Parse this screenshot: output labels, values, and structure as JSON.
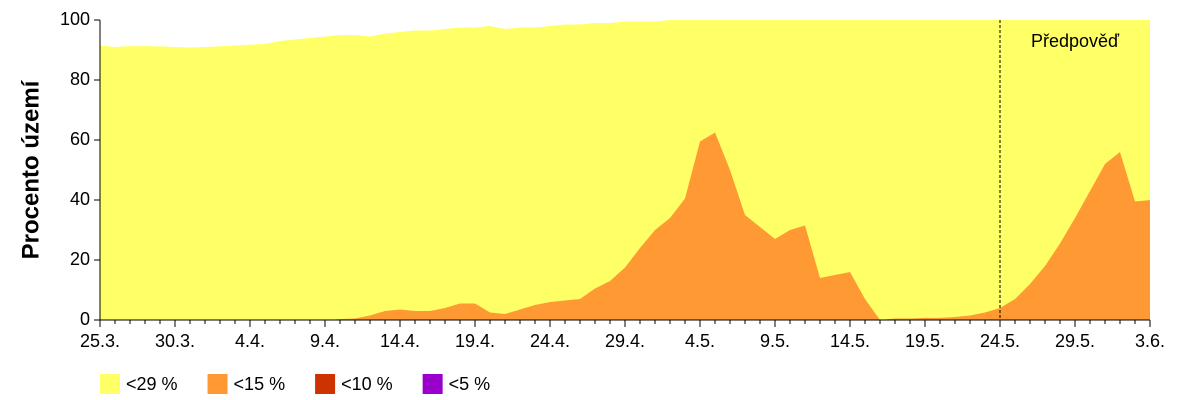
{
  "chart_data": {
    "type": "area",
    "ylabel": "Procento území",
    "categories": [
      "25.3.",
      null,
      null,
      null,
      null,
      "30.3.",
      null,
      null,
      null,
      null,
      "4.4.",
      null,
      null,
      null,
      null,
      "9.4.",
      null,
      null,
      null,
      null,
      "14.4.",
      null,
      null,
      null,
      null,
      "19.4.",
      null,
      null,
      null,
      null,
      "24.4.",
      null,
      null,
      null,
      null,
      "29.4.",
      null,
      null,
      null,
      null,
      "4.5.",
      null,
      null,
      null,
      null,
      "9.5.",
      null,
      null,
      null,
      null,
      "14.5.",
      null,
      null,
      null,
      null,
      "19.5.",
      null,
      null,
      null,
      null,
      "24.5.",
      null,
      null,
      null,
      null,
      "29.5.",
      null,
      null,
      null,
      null,
      "3.6."
    ],
    "series": [
      {
        "name": "<29 %",
        "color": "#ffff66",
        "values": [
          91.5,
          91,
          91.3,
          91.3,
          91.2,
          91,
          90.8,
          91,
          91.2,
          91.5,
          91.8,
          92,
          93,
          93.5,
          94,
          94.5,
          95,
          95,
          94.5,
          95.5,
          96,
          96.5,
          96.5,
          97,
          97.5,
          97.5,
          98,
          97,
          97.5,
          97.5,
          98,
          98.5,
          98.5,
          99,
          99,
          99.5,
          99.5,
          99.5,
          100,
          100,
          100,
          100,
          100,
          100,
          100,
          100,
          100,
          100,
          100,
          100,
          100,
          100,
          100,
          100,
          100,
          100,
          100,
          100,
          100,
          100,
          100,
          100,
          100,
          100,
          100,
          100,
          100,
          100,
          100,
          100,
          100
        ]
      },
      {
        "name": "<15 %",
        "color": "#ff9933",
        "values": [
          0,
          0,
          0,
          0,
          0,
          0,
          0,
          0,
          0,
          0,
          0,
          0,
          0,
          0,
          0,
          0,
          0.3,
          0.5,
          1.5,
          3,
          3.5,
          3,
          3,
          4,
          5.5,
          5.5,
          2.5,
          2,
          3.5,
          5,
          6,
          6.5,
          7,
          10.5,
          13,
          17.5,
          24,
          30,
          34,
          40.5,
          59.5,
          62.5,
          50,
          35,
          31,
          27,
          30,
          31.5,
          14,
          15,
          16,
          7,
          0,
          0.5,
          0.5,
          0.7,
          0.7,
          1,
          1.5,
          2.5,
          4,
          7,
          12,
          18,
          25.5,
          34,
          43,
          52,
          56,
          39.5,
          40
        ]
      },
      {
        "name": "<10 %",
        "color": "#cc3300",
        "values": [
          0,
          0,
          0,
          0,
          0,
          0,
          0,
          0,
          0,
          0,
          0,
          0,
          0,
          0,
          0,
          0,
          0,
          0,
          0,
          0,
          0,
          0,
          0,
          0,
          0,
          0,
          0,
          0,
          0,
          0,
          0,
          0,
          0,
          0,
          0,
          0,
          0,
          0,
          0,
          0,
          0,
          0,
          0,
          0,
          0,
          0,
          0,
          0,
          0,
          0,
          0,
          0,
          0,
          0,
          0,
          0,
          0,
          0,
          0,
          0,
          0,
          0,
          0,
          0,
          0,
          0,
          0,
          0,
          0,
          0,
          0
        ]
      },
      {
        "name": "<5 %",
        "color": "#9900cc",
        "values": [
          0,
          0,
          0,
          0,
          0,
          0,
          0,
          0,
          0,
          0,
          0,
          0,
          0,
          0,
          0,
          0,
          0,
          0,
          0,
          0,
          0,
          0,
          0,
          0,
          0,
          0,
          0,
          0,
          0,
          0,
          0,
          0,
          0,
          0,
          0,
          0,
          0,
          0,
          0,
          0,
          0,
          0,
          0,
          0,
          0,
          0,
          0,
          0,
          0,
          0,
          0,
          0,
          0,
          0,
          0,
          0,
          0,
          0,
          0,
          0,
          0,
          0,
          0,
          0,
          0,
          0,
          0,
          0,
          0,
          0,
          0
        ]
      }
    ],
    "forecast": {
      "label": "Předpověď",
      "from": "24.5."
    },
    "ylim": [
      0,
      100
    ],
    "yticks": [
      0,
      20,
      40,
      60,
      80,
      100
    ],
    "legend": "bottom-left"
  }
}
